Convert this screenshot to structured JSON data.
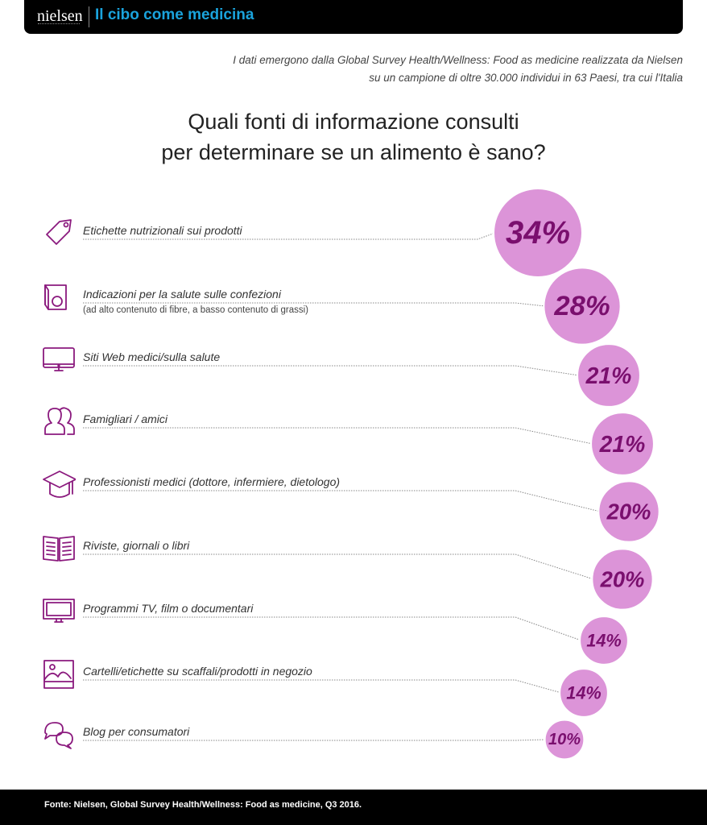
{
  "header": {
    "logo": "nielsen",
    "title": "Il cibo come medicina"
  },
  "intro": {
    "line1": "I dati emergono dalla Global Survey Health/Wellness: Food as medicine realizzata da Nielsen",
    "line2": "su un campione di oltre 30.000 individui in 63 Paesi, tra cui l'Italia"
  },
  "colors": {
    "bubble_fill": "#dc94d8",
    "bubble_text": "#7a0f6e",
    "icon_stroke": "#8b1a7e",
    "title_accent": "#1aa3dc"
  },
  "chart_data": {
    "type": "bubble-list",
    "title": "Quali fonti di informazione consulti per determinare se un alimento è sano?",
    "title_line1": "Quali fonti di informazione consulti",
    "title_line2": "per determinare se un alimento è sano?",
    "unit": "%",
    "categories": [
      "Etichette nutrizionali sui prodotti",
      "Indicazioni per la salute sulle confezioni",
      "Siti Web medici/sulla salute",
      "Famigliari / amici",
      "Professionisti medici (dottore, infermiere, dietologo)",
      "Riviste, giornali o libri",
      "Programmi TV, film o documentari",
      "Cartelli/etichette su scaffali/prodotti in negozio",
      "Blog per consumatori"
    ],
    "sublabels": [
      "",
      "(ad alto contenuto di fibre, a basso contenuto di grassi)",
      "",
      "",
      "",
      "",
      "",
      "",
      ""
    ],
    "icons": [
      "tag-icon",
      "package-icon",
      "monitor-icon",
      "people-icon",
      "graduation-cap-icon",
      "book-icon",
      "tv-icon",
      "picture-icon",
      "chat-bubbles-icon"
    ],
    "values": [
      34,
      28,
      21,
      21,
      20,
      20,
      14,
      14,
      10
    ],
    "labels": [
      "34%",
      "28%",
      "21%",
      "21%",
      "20%",
      "20%",
      "14%",
      "14%",
      "10%"
    ]
  },
  "footer": {
    "source": "Fonte: Nielsen, Global Survey Health/Wellness: Food as medicine, Q3 2016."
  }
}
